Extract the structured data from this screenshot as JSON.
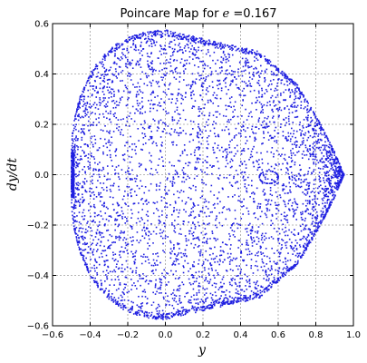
{
  "chart_data": {
    "type": "scatter",
    "title_prefix": "Poincare Map for ",
    "title_math": "e",
    "title_suffix": " =0.167",
    "xlabel": "y",
    "ylabel": "dy/dt",
    "xlim": [
      -0.6,
      1.0
    ],
    "ylim": [
      -0.6,
      0.6
    ],
    "xticks": [
      -0.6,
      -0.4,
      -0.2,
      0.0,
      0.2,
      0.4,
      0.6,
      0.8,
      1.0
    ],
    "xtick_labels": [
      "−0.6",
      "−0.4",
      "−0.2",
      "0.0",
      "0.2",
      "0.4",
      "0.6",
      "0.8",
      "1.0"
    ],
    "yticks": [
      -0.6,
      -0.4,
      -0.2,
      0.0,
      0.2,
      0.4,
      0.6
    ],
    "ytick_labels": [
      "−0.6",
      "−0.4",
      "−0.2",
      "0.0",
      "0.2",
      "0.4",
      "0.6"
    ],
    "grid": true,
    "point_color": "#1f1fe0",
    "region": {
      "description_boundary_y": [
        -0.5,
        0.0,
        0.5,
        0.7,
        0.82,
        0.9,
        0.95
      ],
      "description_boundary_dydt_top": [
        0.08,
        0.575,
        0.49,
        0.36,
        0.21,
        0.09,
        0.0
      ]
    },
    "island": {
      "y": 0.55,
      "dydt": -0.01
    }
  }
}
